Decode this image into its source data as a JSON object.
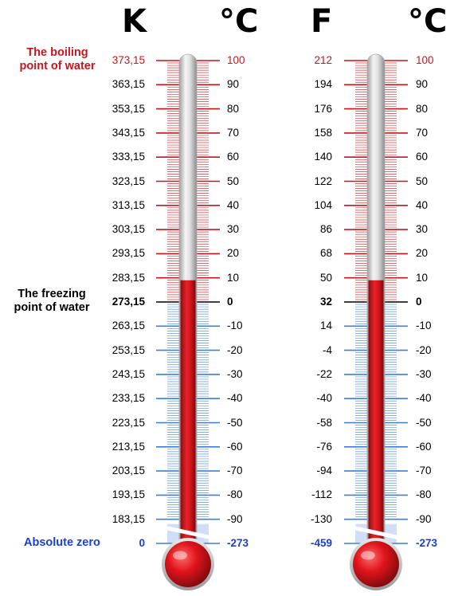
{
  "headers": {
    "kelvin": "K",
    "celsius_left": "°C",
    "fahrenheit": "F",
    "celsius_right": "°C"
  },
  "labels": {
    "boiling": [
      "The boiling",
      "point of water"
    ],
    "freezing": [
      "The freezing",
      "point  of water"
    ],
    "absolute_zero": "Absolute zero"
  },
  "left_thermometer": {
    "outer_scale": [
      "373,15",
      "363,15",
      "353,15",
      "343,15",
      "333,15",
      "323,15",
      "313,15",
      "303,15",
      "293,15",
      "283,15",
      "273,15",
      "263,15",
      "253,15",
      "243,15",
      "233,15",
      "223,15",
      "213,15",
      "203,15",
      "193,15",
      "183,15"
    ],
    "outer_zero": "0",
    "inner_scale": [
      "100",
      "90",
      "80",
      "70",
      "60",
      "50",
      "40",
      "30",
      "20",
      "10",
      "0",
      "-10",
      "-20",
      "-30",
      "-40",
      "-50",
      "-60",
      "-70",
      "-80",
      "-90"
    ],
    "inner_zero": "-273",
    "mercury_level_celsius": 9
  },
  "right_thermometer": {
    "outer_scale": [
      "212",
      "194",
      "176",
      "158",
      "140",
      "122",
      "104",
      "86",
      "68",
      "50",
      "32",
      "14",
      "-4",
      "-22",
      "-40",
      "-58",
      "-76",
      "-94",
      "-112",
      "-130"
    ],
    "outer_zero": "-459",
    "inner_scale": [
      "100",
      "90",
      "80",
      "70",
      "60",
      "50",
      "40",
      "30",
      "20",
      "10",
      "0",
      "-10",
      "-20",
      "-30",
      "-40",
      "-50",
      "-60",
      "-70",
      "-80",
      "-90"
    ],
    "inner_zero": "-273",
    "mercury_level_celsius": 9
  },
  "colors": {
    "hot": "#c8141c",
    "cold": "#1a3fd6",
    "freezing": "#000000",
    "blue_line": "#3b7fd8",
    "red_line": "#c8141c",
    "mercury": "#d8141a",
    "glass": "#d6d6d6"
  }
}
